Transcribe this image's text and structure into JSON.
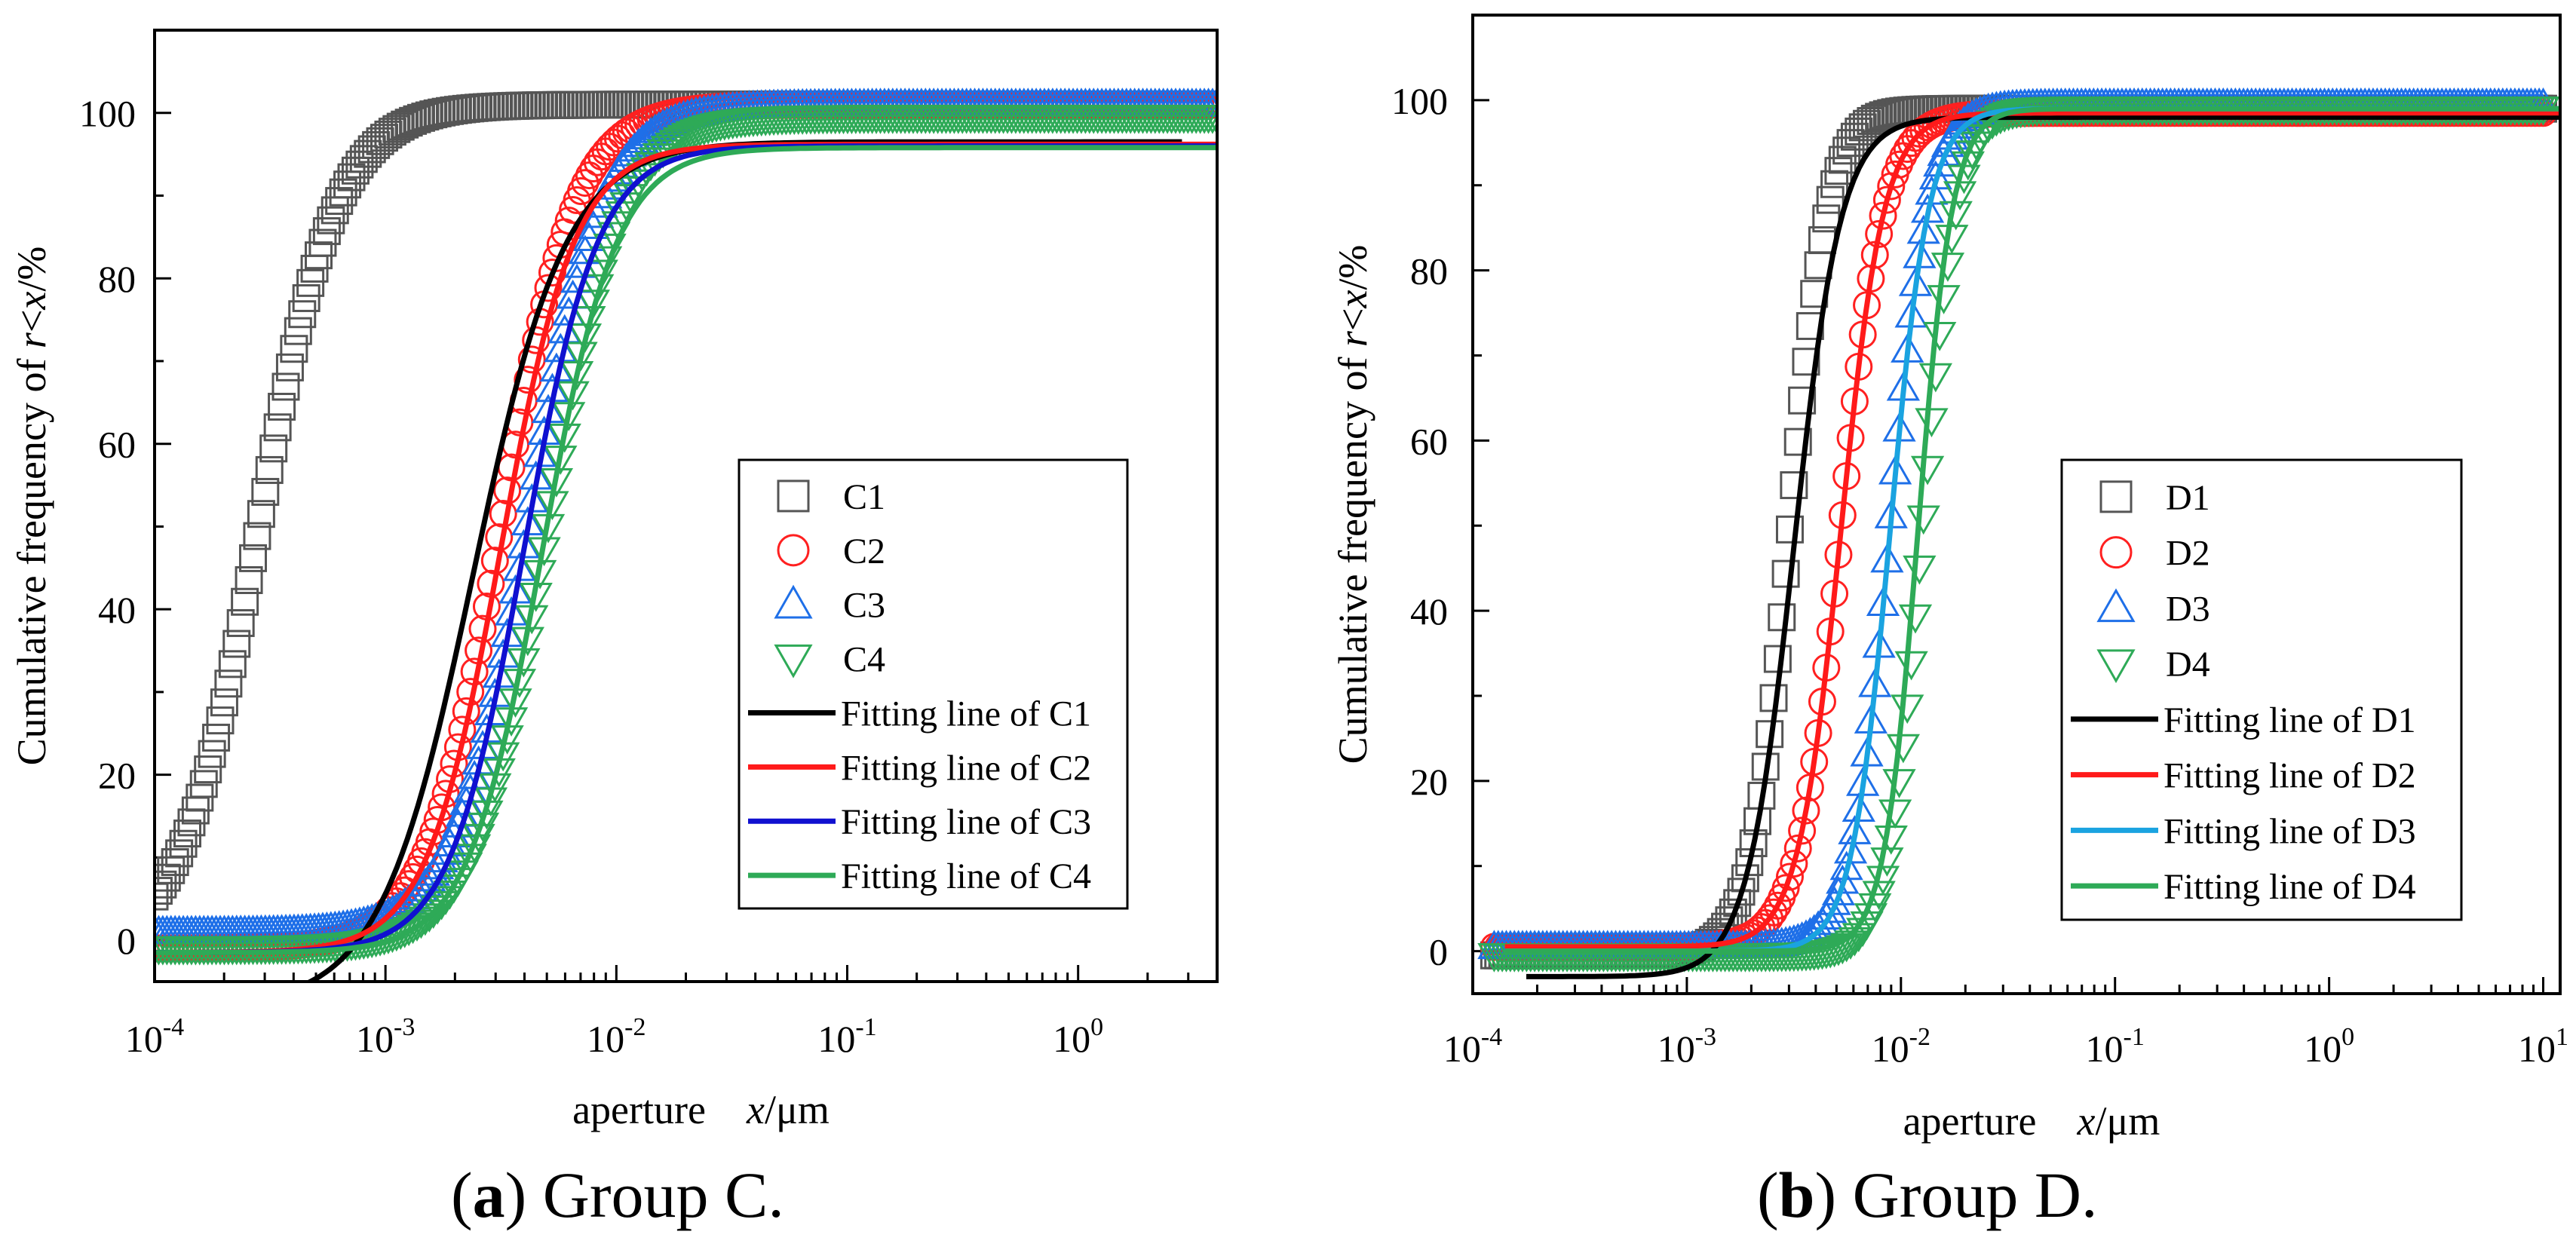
{
  "chart_data": [
    {
      "type": "line",
      "panel": "a",
      "caption": {
        "letter": "a",
        "text": "Group C."
      },
      "xlabel": "aperture",
      "xvar": "x",
      "xunit": "/μm",
      "ylabel_prefix": "Cumulative frequency of ",
      "ylabel_r": "r",
      "ylabel_lt": "<",
      "ylabel_x": "x",
      "ylabel_suffix": "/%",
      "xscale": "log",
      "xlim": [
        0.0001,
        4
      ],
      "ylim": [
        -5,
        110
      ],
      "xticks": [
        {
          "value": 0.0001,
          "base": "10",
          "exp": "-4"
        },
        {
          "value": 0.001,
          "base": "10",
          "exp": "-3"
        },
        {
          "value": 0.01,
          "base": "10",
          "exp": "-2"
        },
        {
          "value": 0.1,
          "base": "10",
          "exp": "-1"
        },
        {
          "value": 1,
          "base": "10",
          "exp": "0"
        }
      ],
      "yticks": [
        "0",
        "20",
        "40",
        "60",
        "80",
        "100"
      ],
      "series": [
        {
          "name": "C1",
          "marker": "square",
          "color": "#555555",
          "logx0": -3.55,
          "width": 0.17,
          "lower": -1.5,
          "upper": 101,
          "start": -4.0,
          "end": 0.6
        },
        {
          "name": "C2",
          "marker": "circle",
          "color": "#ff2020",
          "logx0": -2.5,
          "width": 0.16,
          "lower": -1.0,
          "upper": 101,
          "start": -4.0,
          "end": 0.6
        },
        {
          "name": "C3",
          "marker": "triangle-up",
          "color": "#1e6fe8",
          "logx0": -2.38,
          "width": 0.16,
          "lower": 1.0,
          "upper": 101,
          "start": -4.0,
          "end": 0.6
        },
        {
          "name": "C4",
          "marker": "triangle-down",
          "color": "#2eaa57",
          "logx0": -2.3,
          "width": 0.16,
          "lower": -1.0,
          "upper": 99.5,
          "start": -4.0,
          "end": 0.6
        }
      ],
      "fits": [
        {
          "name": "Fitting line of C1",
          "color": "#000000",
          "logx0": -2.62,
          "width": 0.2,
          "lower": -8,
          "upper": 96.5,
          "start": -4.0,
          "end": 0.45
        },
        {
          "name": "Fitting line of C2",
          "color": "#ff1a1a",
          "logx0": -2.5,
          "width": 0.16,
          "lower": -1.5,
          "upper": 96.2,
          "start": -4.0,
          "end": 0.6
        },
        {
          "name": "Fitting line of C3",
          "color": "#1010d0",
          "logx0": -2.4,
          "width": 0.16,
          "lower": -1.5,
          "upper": 96.0,
          "start": -4.0,
          "end": 0.6
        },
        {
          "name": "Fitting line of C4",
          "color": "#2eaa57",
          "logx0": -2.32,
          "width": 0.16,
          "lower": -1.5,
          "upper": 95.8,
          "start": -4.0,
          "end": 0.6
        }
      ]
    },
    {
      "type": "line",
      "panel": "b",
      "caption": {
        "letter": "b",
        "text": "Group D."
      },
      "xlabel": "aperture",
      "xvar": "x",
      "xunit": "/μm",
      "ylabel_prefix": "Cumulative frequency of ",
      "ylabel_r": "r",
      "ylabel_lt": "<",
      "ylabel_x": "x",
      "ylabel_suffix": "/%",
      "xscale": "log",
      "xlim": [
        0.0001,
        12
      ],
      "ylim": [
        -5,
        110
      ],
      "xticks": [
        {
          "value": 0.0001,
          "base": "10",
          "exp": "-4"
        },
        {
          "value": 0.001,
          "base": "10",
          "exp": "-3"
        },
        {
          "value": 0.01,
          "base": "10",
          "exp": "-2"
        },
        {
          "value": 0.1,
          "base": "10",
          "exp": "-1"
        },
        {
          "value": 1,
          "base": "10",
          "exp": "0"
        },
        {
          "value": 10,
          "base": "10",
          "exp": "1"
        }
      ],
      "yticks": [
        "0",
        "20",
        "40",
        "60",
        "80",
        "100"
      ],
      "series": [
        {
          "name": "D1",
          "marker": "square",
          "color": "#555555",
          "logx0": -2.52,
          "width": 0.09,
          "lower": -0.5,
          "upper": 99,
          "start": -3.9,
          "end": 1.0
        },
        {
          "name": "D2",
          "marker": "circle",
          "color": "#ff2020",
          "logx0": -2.28,
          "width": 0.1,
          "lower": 0.5,
          "upper": 98.5,
          "start": -3.9,
          "end": 1.0
        },
        {
          "name": "D3",
          "marker": "triangle-up",
          "color": "#1e6fe8",
          "logx0": -2.05,
          "width": 0.09,
          "lower": 0.5,
          "upper": 99.5,
          "start": -3.9,
          "end": 1.0
        },
        {
          "name": "D4",
          "marker": "triangle-down",
          "color": "#2eaa57",
          "logx0": -1.9,
          "width": 0.08,
          "lower": -0.5,
          "upper": 99.0,
          "start": -3.9,
          "end": 1.0
        }
      ],
      "fits": [
        {
          "name": "Fitting line of D1",
          "color": "#000000",
          "logx0": -2.5,
          "width": 0.11,
          "lower": -3,
          "upper": 98,
          "start": -3.75,
          "end": 1.08
        },
        {
          "name": "Fitting line of D2",
          "color": "#ff1a1a",
          "logx0": -2.28,
          "width": 0.1,
          "lower": 0.5,
          "upper": 98.5,
          "start": -3.85,
          "end": 1.08
        },
        {
          "name": "Fitting line of D3",
          "color": "#1aa3e0",
          "logx0": -2.05,
          "width": 0.09,
          "lower": 0.0,
          "upper": 99.0,
          "start": -3.85,
          "end": 1.08
        },
        {
          "name": "Fitting line of D4",
          "color": "#2eaa57",
          "logx0": -1.92,
          "width": 0.08,
          "lower": 0.0,
          "upper": 99.0,
          "start": -3.85,
          "end": 1.08
        }
      ]
    }
  ]
}
